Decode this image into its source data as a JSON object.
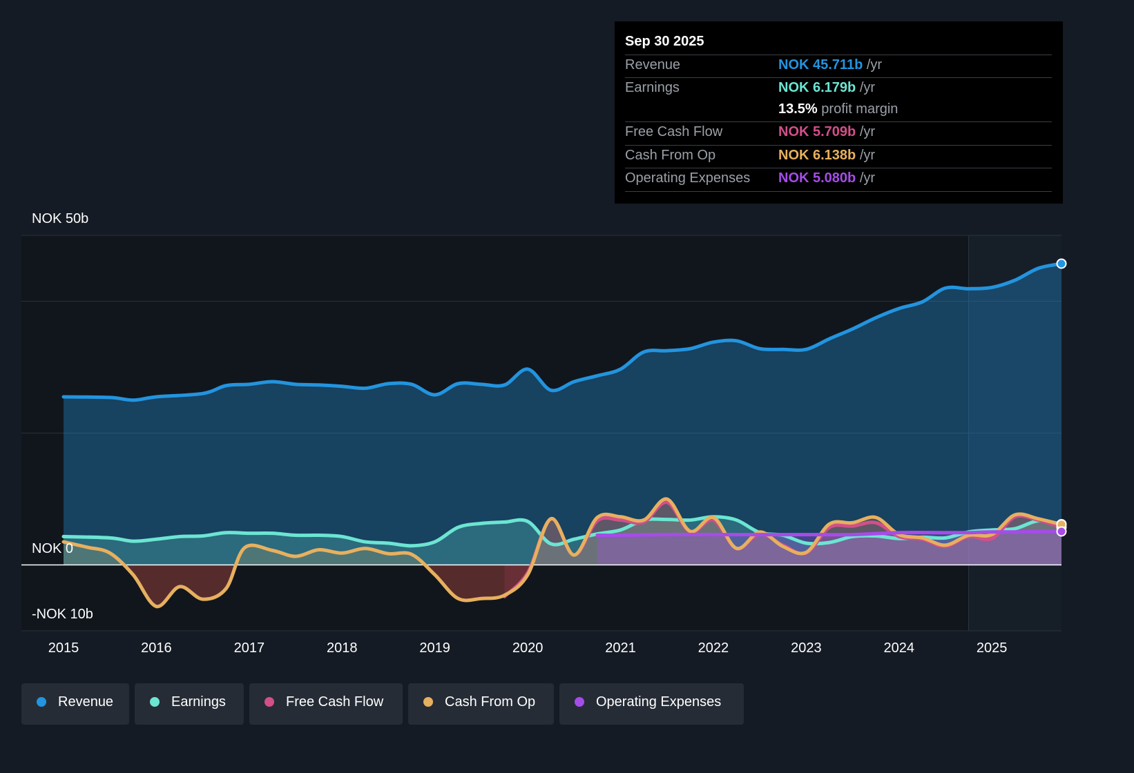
{
  "tooltip": {
    "date": "Sep 30 2025",
    "rows": [
      {
        "label": "Revenue",
        "value": "NOK 45.711b",
        "unit": "/yr",
        "color": "#2394df"
      },
      {
        "label": "Earnings",
        "value": "NOK 6.179b",
        "unit": "/yr",
        "color": "#6ce5d2"
      },
      {
        "label": "",
        "value": "13.5%",
        "unit": "profit margin",
        "color": "#ffffff"
      },
      {
        "label": "Free Cash Flow",
        "value": "NOK 5.709b",
        "unit": "/yr",
        "color": "#d24f8a"
      },
      {
        "label": "Cash From Op",
        "value": "NOK 6.138b",
        "unit": "/yr",
        "color": "#e7b05f"
      },
      {
        "label": "Operating Expenses",
        "value": "NOK 5.080b",
        "unit": "/yr",
        "color": "#a64ce8"
      }
    ]
  },
  "legend": [
    {
      "label": "Revenue",
      "color": "#2394df"
    },
    {
      "label": "Earnings",
      "color": "#6ce5d2"
    },
    {
      "label": "Free Cash Flow",
      "color": "#d24f8a"
    },
    {
      "label": "Cash From Op",
      "color": "#e7b05f"
    },
    {
      "label": "Operating Expenses",
      "color": "#a64ce8"
    }
  ],
  "chart_data": {
    "type": "line",
    "currency": "NOK",
    "y_axis_labels": {
      "top": "NOK 50b",
      "zero": "NOK 0",
      "bottom": "-NOK 10b"
    },
    "ylim": [
      -10,
      50
    ],
    "xlim": [
      2015.0,
      2025.75
    ],
    "x_ticks": [
      "2015",
      "2016",
      "2017",
      "2018",
      "2019",
      "2020",
      "2021",
      "2022",
      "2023",
      "2024",
      "2025"
    ],
    "forecast_start": 2024.75,
    "series": [
      {
        "name": "Revenue",
        "color": "#2394df",
        "x": [
          2015.0,
          2015.5,
          2015.75,
          2016.0,
          2016.5,
          2016.75,
          2017.0,
          2017.25,
          2017.5,
          2017.75,
          2018.0,
          2018.25,
          2018.5,
          2018.75,
          2019.0,
          2019.25,
          2019.5,
          2019.75,
          2020.0,
          2020.25,
          2020.5,
          2020.75,
          2021.0,
          2021.25,
          2021.5,
          2021.75,
          2022.0,
          2022.25,
          2022.5,
          2022.75,
          2023.0,
          2023.25,
          2023.5,
          2023.75,
          2024.0,
          2024.25,
          2024.5,
          2024.75,
          2025.0,
          2025.25,
          2025.5,
          2025.75
        ],
        "values": [
          25.5,
          25.4,
          25.0,
          25.5,
          26.0,
          27.2,
          27.4,
          27.8,
          27.4,
          27.3,
          27.1,
          26.8,
          27.5,
          27.4,
          25.8,
          27.5,
          27.4,
          27.3,
          29.7,
          26.5,
          27.8,
          28.7,
          29.7,
          32.3,
          32.5,
          32.8,
          33.8,
          34.0,
          32.8,
          32.7,
          32.7,
          34.3,
          35.8,
          37.5,
          38.9,
          39.9,
          42.0,
          41.9,
          42.1,
          43.2,
          45.0,
          45.711
        ]
      },
      {
        "name": "Earnings",
        "color": "#6ce5d2",
        "x": [
          2015.0,
          2015.5,
          2015.75,
          2016.0,
          2016.25,
          2016.5,
          2016.75,
          2017.0,
          2017.25,
          2017.5,
          2017.75,
          2018.0,
          2018.25,
          2018.5,
          2018.75,
          2019.0,
          2019.25,
          2019.5,
          2019.75,
          2020.0,
          2020.25,
          2020.5,
          2020.75,
          2021.0,
          2021.25,
          2021.5,
          2021.75,
          2022.0,
          2022.25,
          2022.5,
          2022.75,
          2023.0,
          2023.25,
          2023.5,
          2023.75,
          2024.0,
          2024.25,
          2024.5,
          2024.75,
          2025.0,
          2025.25,
          2025.5,
          2025.75
        ],
        "values": [
          4.3,
          4.1,
          3.6,
          3.9,
          4.3,
          4.4,
          4.9,
          4.8,
          4.8,
          4.5,
          4.5,
          4.3,
          3.5,
          3.3,
          2.9,
          3.5,
          5.7,
          6.3,
          6.5,
          6.6,
          3.2,
          3.9,
          4.7,
          5.3,
          6.8,
          6.9,
          6.8,
          7.3,
          6.8,
          4.9,
          4.5,
          3.3,
          3.4,
          4.3,
          4.4,
          4.0,
          4.2,
          4.1,
          5.0,
          5.3,
          5.5,
          6.7,
          6.179
        ]
      },
      {
        "name": "Free Cash Flow",
        "color": "#d24f8a",
        "x": [
          2019.75,
          2020.0,
          2020.25,
          2020.5,
          2020.75,
          2021.0,
          2021.25,
          2021.5,
          2021.75,
          2022.0,
          2022.25,
          2022.5,
          2022.75,
          2023.0,
          2023.25,
          2023.5,
          2023.75,
          2024.0,
          2024.25,
          2024.5,
          2024.75,
          2025.0,
          2025.25,
          2025.5,
          2025.75
        ],
        "values": [
          -4.8,
          -1.2,
          7.0,
          1.5,
          6.7,
          6.8,
          6.5,
          9.5,
          5.0,
          6.8,
          2.5,
          4.7,
          3.0,
          1.8,
          5.7,
          5.9,
          6.4,
          4.3,
          3.9,
          2.8,
          4.3,
          4.0,
          7.3,
          6.8,
          5.709
        ]
      },
      {
        "name": "Cash From Op",
        "color": "#e7b05f",
        "x": [
          2015.0,
          2015.25,
          2015.5,
          2015.75,
          2016.0,
          2016.25,
          2016.5,
          2016.75,
          2016.95,
          2017.25,
          2017.5,
          2017.75,
          2018.0,
          2018.25,
          2018.5,
          2018.75,
          2019.0,
          2019.25,
          2019.5,
          2019.75,
          2020.0,
          2020.25,
          2020.5,
          2020.75,
          2021.0,
          2021.25,
          2021.5,
          2021.75,
          2022.0,
          2022.25,
          2022.5,
          2022.75,
          2023.0,
          2023.25,
          2023.5,
          2023.75,
          2024.0,
          2024.25,
          2024.5,
          2024.75,
          2025.0,
          2025.25,
          2025.5,
          2025.75
        ],
        "values": [
          3.5,
          2.7,
          1.8,
          -1.5,
          -6.3,
          -3.3,
          -5.2,
          -3.6,
          2.6,
          2.2,
          1.3,
          2.3,
          1.8,
          2.5,
          1.7,
          1.6,
          -1.5,
          -5.1,
          -5.1,
          -4.6,
          -1.5,
          7.0,
          1.5,
          7.2,
          7.3,
          6.8,
          10.0,
          5.1,
          7.2,
          2.5,
          5.0,
          2.8,
          1.9,
          6.2,
          6.4,
          7.2,
          4.6,
          4.1,
          3.0,
          4.5,
          4.6,
          7.6,
          7.0,
          6.138
        ]
      },
      {
        "name": "Operating Expenses",
        "color": "#a64ce8",
        "x": [
          2020.75,
          2021.0,
          2021.5,
          2022.0,
          2022.5,
          2023.0,
          2023.5,
          2024.0,
          2024.5,
          2024.75,
          2025.0,
          2025.25,
          2025.5,
          2025.75
        ],
        "values": [
          4.5,
          4.5,
          4.6,
          4.6,
          4.6,
          4.6,
          4.6,
          4.9,
          4.9,
          4.9,
          5.0,
          5.0,
          5.05,
          5.08
        ]
      }
    ]
  }
}
